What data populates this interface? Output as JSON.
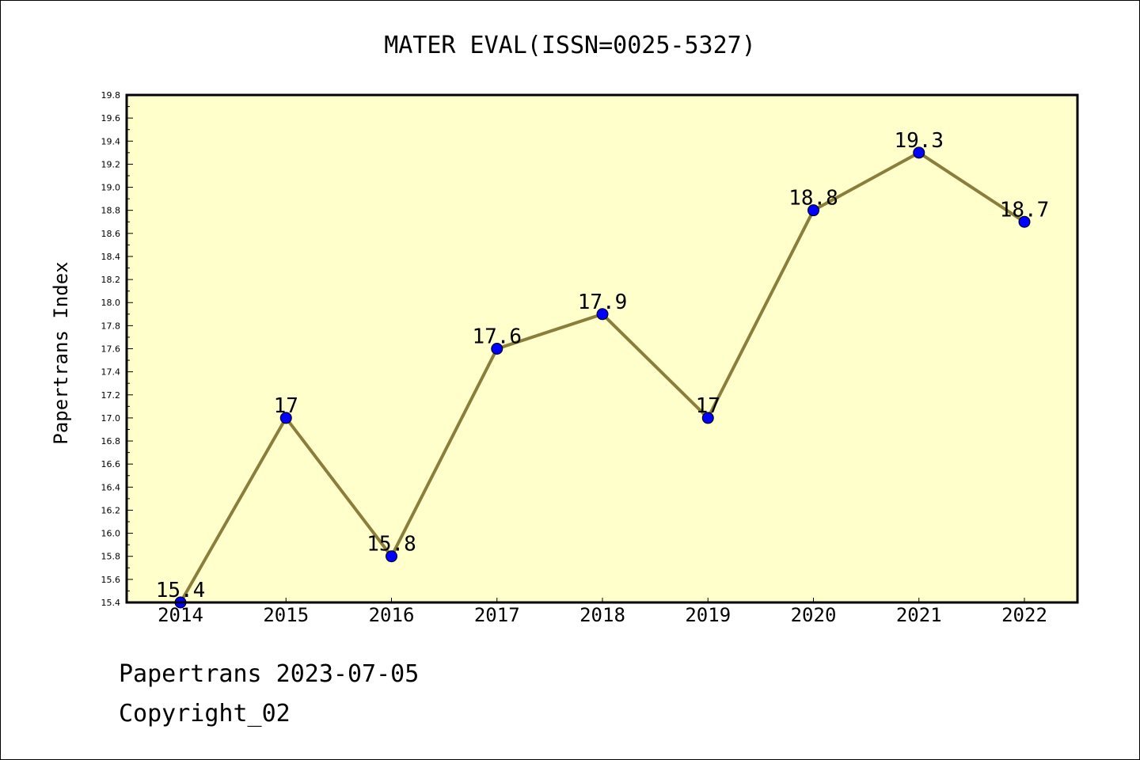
{
  "chart_data": {
    "type": "line",
    "title": "MATER EVAL(ISSN=0025-5327)",
    "xlabel": "",
    "ylabel": "Papertrans Index",
    "categories": [
      "2014",
      "2015",
      "2016",
      "2017",
      "2018",
      "2019",
      "2020",
      "2021",
      "2022"
    ],
    "series": [
      {
        "values": [
          15.4,
          17,
          15.8,
          17.6,
          17.9,
          17,
          18.8,
          19.3,
          18.7
        ],
        "data_labels": [
          "15.4",
          "17",
          "15.8",
          "17.6",
          "17.9",
          "17",
          "18.8",
          "19.3",
          "18.7"
        ]
      }
    ],
    "ylim": [
      15.4,
      19.8
    ],
    "yticks": [
      "15.4",
      "15.6",
      "15.8",
      "16.0",
      "16.2",
      "16.4",
      "16.6",
      "16.8",
      "17.0",
      "17.2",
      "17.4",
      "17.6",
      "17.8",
      "18.0",
      "18.2",
      "18.4",
      "18.6",
      "18.8",
      "19.0",
      "19.2",
      "19.4",
      "19.6",
      "19.8"
    ],
    "grid": false,
    "colors": {
      "plot_background": "#ffffcc",
      "line": "#8b7d3a",
      "marker": "#0000ff"
    }
  },
  "footer": {
    "line1": "Papertrans 2023-07-05",
    "line2": "Copyright_02"
  }
}
